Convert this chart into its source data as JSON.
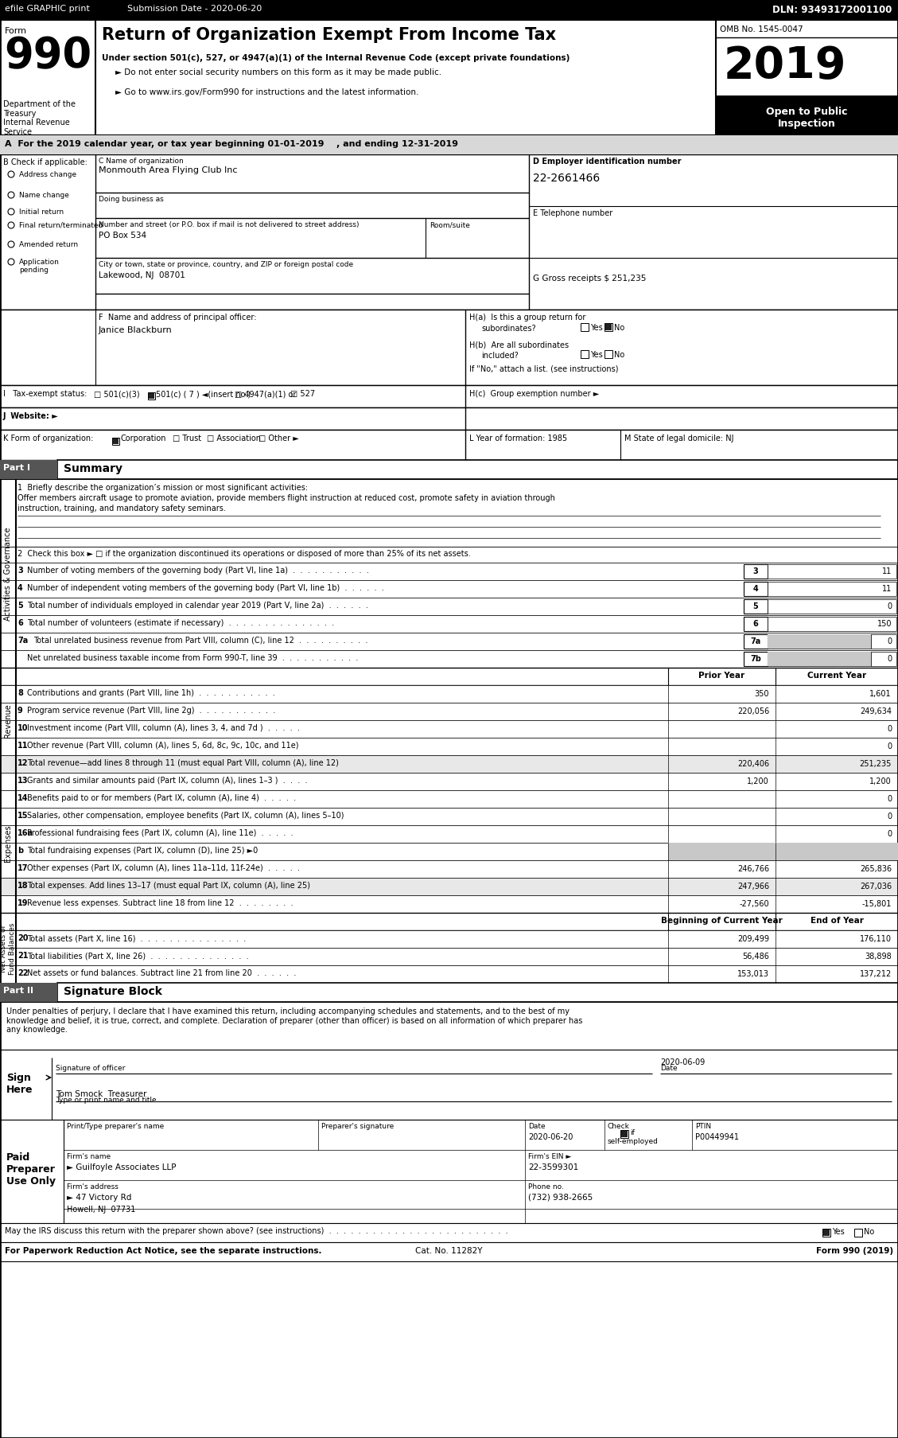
{
  "efile_text": "efile GRAPHIC print",
  "submission_date": "Submission Date - 2020-06-20",
  "dln": "DLN: 93493172001100",
  "form_label": "Form",
  "title": "Return of Organization Exempt From Income Tax",
  "subtitle1": "Under section 501(c), 527, or 4947(a)(1) of the Internal Revenue Code (except private foundations)",
  "subtitle2": "► Do not enter social security numbers on this form as it may be made public.",
  "subtitle3": "► Go to www.irs.gov/Form990 for instructions and the latest information.",
  "dept_label": "Department of the\nTreasury\nInternal Revenue\nService",
  "omb": "OMB No. 1545-0047",
  "year": "2019",
  "open_label": "Open to Public\nInspection",
  "part_a": "A  For the 2019 calendar year, or tax year beginning 01-01-2019    , and ending 12-31-2019",
  "b_label": "B Check if applicable:",
  "check_items": [
    "Address change",
    "Name change",
    "Initial return",
    "Final return/terminated",
    "Amended return",
    "Application\npending"
  ],
  "c_label": "C Name of organization",
  "org_name": "Monmouth Area Flying Club Inc",
  "dba_label": "Doing business as",
  "addr_label": "Number and street (or P.O. box if mail is not delivered to street address)",
  "room_label": "Room/suite",
  "addr_value": "PO Box 534",
  "city_label": "City or town, state or province, country, and ZIP or foreign postal code",
  "city_value": "Lakewood, NJ  08701",
  "d_label": "D Employer identification number",
  "ein": "22-2661466",
  "e_label": "E Telephone number",
  "g_label": "G Gross receipts $ 251,235",
  "f_label": "F  Name and address of principal officer:",
  "principal": "Janice Blackburn",
  "ha_label1": "H(a)  Is this a group return for",
  "ha_label2": "subordinates?",
  "hb_label1": "H(b)  Are all subordinates",
  "hb_label2": "included?",
  "hb_note": "If \"No,\" attach a list. (see instructions)",
  "hc_label": "H(c)  Group exemption number ►",
  "i_label": "I   Tax-exempt status:",
  "j_label": "J  Website: ►",
  "l_label": "L Year of formation: 1985",
  "m_label": "M State of legal domicile: NJ",
  "part1_label": "Part I",
  "part1_title": "Summary",
  "line1_label": "1  Briefly describe the organization’s mission or most significant activities:",
  "line1_text1": "Offer members aircraft usage to promote aviation, provide members flight instruction at reduced cost, promote safety in aviation through",
  "line1_text2": "instruction, training, and mandatory safety seminars.",
  "line2_label": "2  Check this box ► □ if the organization discontinued its operations or disposed of more than 25% of its net assets.",
  "lines_36": [
    [
      "3",
      "Number of voting members of the governing body (Part VI, line 1a)  .  .  .  .  .  .  .  .  .  .  .",
      "3",
      "11"
    ],
    [
      "4",
      "Number of independent voting members of the governing body (Part VI, line 1b)  .  .  .  .  .  .",
      "4",
      "11"
    ],
    [
      "5",
      "Total number of individuals employed in calendar year 2019 (Part V, line 2a)  .  .  .  .  .  .",
      "5",
      "0"
    ],
    [
      "6",
      "Total number of volunteers (estimate if necessary)  .  .  .  .  .  .  .  .  .  .  .  .  .  .  .",
      "6",
      "150"
    ]
  ],
  "line_7a_text": "Total unrelated business revenue from Part VIII, column (C), line 12  .  .  .  .  .  .  .  .  .  .",
  "line_7b_text": "Net unrelated business taxable income from Form 990-T, line 39  .  .  .  .  .  .  .  .  .  .  .",
  "revenue_lines": [
    [
      "8",
      "Contributions and grants (Part VIII, line 1h)  .  .  .  .  .  .  .  .  .  .  .",
      "350",
      "1,601"
    ],
    [
      "9",
      "Program service revenue (Part VIII, line 2g)  .  .  .  .  .  .  .  .  .  .  .",
      "220,056",
      "249,634"
    ],
    [
      "10",
      "Investment income (Part VIII, column (A), lines 3, 4, and 7d )  .  .  .  .  .",
      "",
      "0"
    ],
    [
      "11",
      "Other revenue (Part VIII, column (A), lines 5, 6d, 8c, 9c, 10c, and 11e)",
      "",
      "0"
    ],
    [
      "12",
      "Total revenue—add lines 8 through 11 (must equal Part VIII, column (A), line 12)",
      "220,406",
      "251,235"
    ]
  ],
  "expense_lines": [
    [
      "13",
      "Grants and similar amounts paid (Part IX, column (A), lines 1–3 )  .  .  .  .",
      "1,200",
      "1,200"
    ],
    [
      "14",
      "Benefits paid to or for members (Part IX, column (A), line 4)  .  .  .  .  .",
      "",
      "0"
    ],
    [
      "15",
      "Salaries, other compensation, employee benefits (Part IX, column (A), lines 5–10)",
      "",
      "0"
    ],
    [
      "16a",
      "Professional fundraising fees (Part IX, column (A), line 11e)  .  .  .  .  .",
      "",
      "0"
    ],
    [
      "b",
      "Total fundraising expenses (Part IX, column (D), line 25) ►0",
      "",
      ""
    ],
    [
      "17",
      "Other expenses (Part IX, column (A), lines 11a–11d, 11f-24e)  .  .  .  .  .",
      "246,766",
      "265,836"
    ],
    [
      "18",
      "Total expenses. Add lines 13–17 (must equal Part IX, column (A), line 25)",
      "247,966",
      "267,036"
    ],
    [
      "19",
      "Revenue less expenses. Subtract line 18 from line 12  .  .  .  .  .  .  .  .",
      "-27,560",
      "-15,801"
    ]
  ],
  "netasset_lines": [
    [
      "20",
      "Total assets (Part X, line 16)  .  .  .  .  .  .  .  .  .  .  .  .  .  .  .",
      "209,499",
      "176,110"
    ],
    [
      "21",
      "Total liabilities (Part X, line 26)  .  .  .  .  .  .  .  .  .  .  .  .  .  .",
      "56,486",
      "38,898"
    ],
    [
      "22",
      "Net assets or fund balances. Subtract line 21 from line 20  .  .  .  .  .  .",
      "153,013",
      "137,212"
    ]
  ],
  "part2_label": "Part II",
  "part2_title": "Signature Block",
  "sig_text": "Under penalties of perjury, I declare that I have examined this return, including accompanying schedules and statements, and to the best of my\nknowledge and belief, it is true, correct, and complete. Declaration of preparer (other than officer) is based on all information of which preparer has\nany knowledge.",
  "sign_here": "Sign\nHere",
  "sig_date": "2020-06-09",
  "sig_officer_label": "Signature of officer",
  "sig_date_label": "Date",
  "sig_name": "Tom Smock  Treasurer",
  "sig_title_label": "Type or print name and title",
  "paid_preparer": "Paid\nPreparer\nUse Only",
  "preparer_name_label": "Print/Type preparer's name",
  "preparer_sig_label": "Preparer's signature",
  "preparer_date_label": "Date",
  "preparer_check_label": "Check",
  "preparer_check2": "if",
  "preparer_selfempl": "self-employed",
  "ptin_label": "PTIN",
  "preparer_date": "2020-06-20",
  "ptin": "P00449941",
  "firm_name_label": "Firm's name",
  "firm_name": "► Guilfoyle Associates LLP",
  "firm_ein_label": "Firm's EIN ►",
  "firm_ein": "22-3599301",
  "firm_addr_label": "Firm's address",
  "firm_addr": "► 47 Victory Rd",
  "firm_phone_label": "Phone no.",
  "firm_phone": "(732) 938-2665",
  "firm_city": "Howell, NJ  07731",
  "discuss_label": "May the IRS discuss this return with the preparer shown above? (see instructions)  .  .  .  .  .  .  .  .  .  .  .  .  .  .  .  .  .  .  .  .  .  .  .  .  .",
  "cat_label": "Cat. No. 11282Y",
  "form990_label": "Form 990 (2019)",
  "paperwork_label": "For Paperwork Reduction Act Notice, see the separate instructions."
}
